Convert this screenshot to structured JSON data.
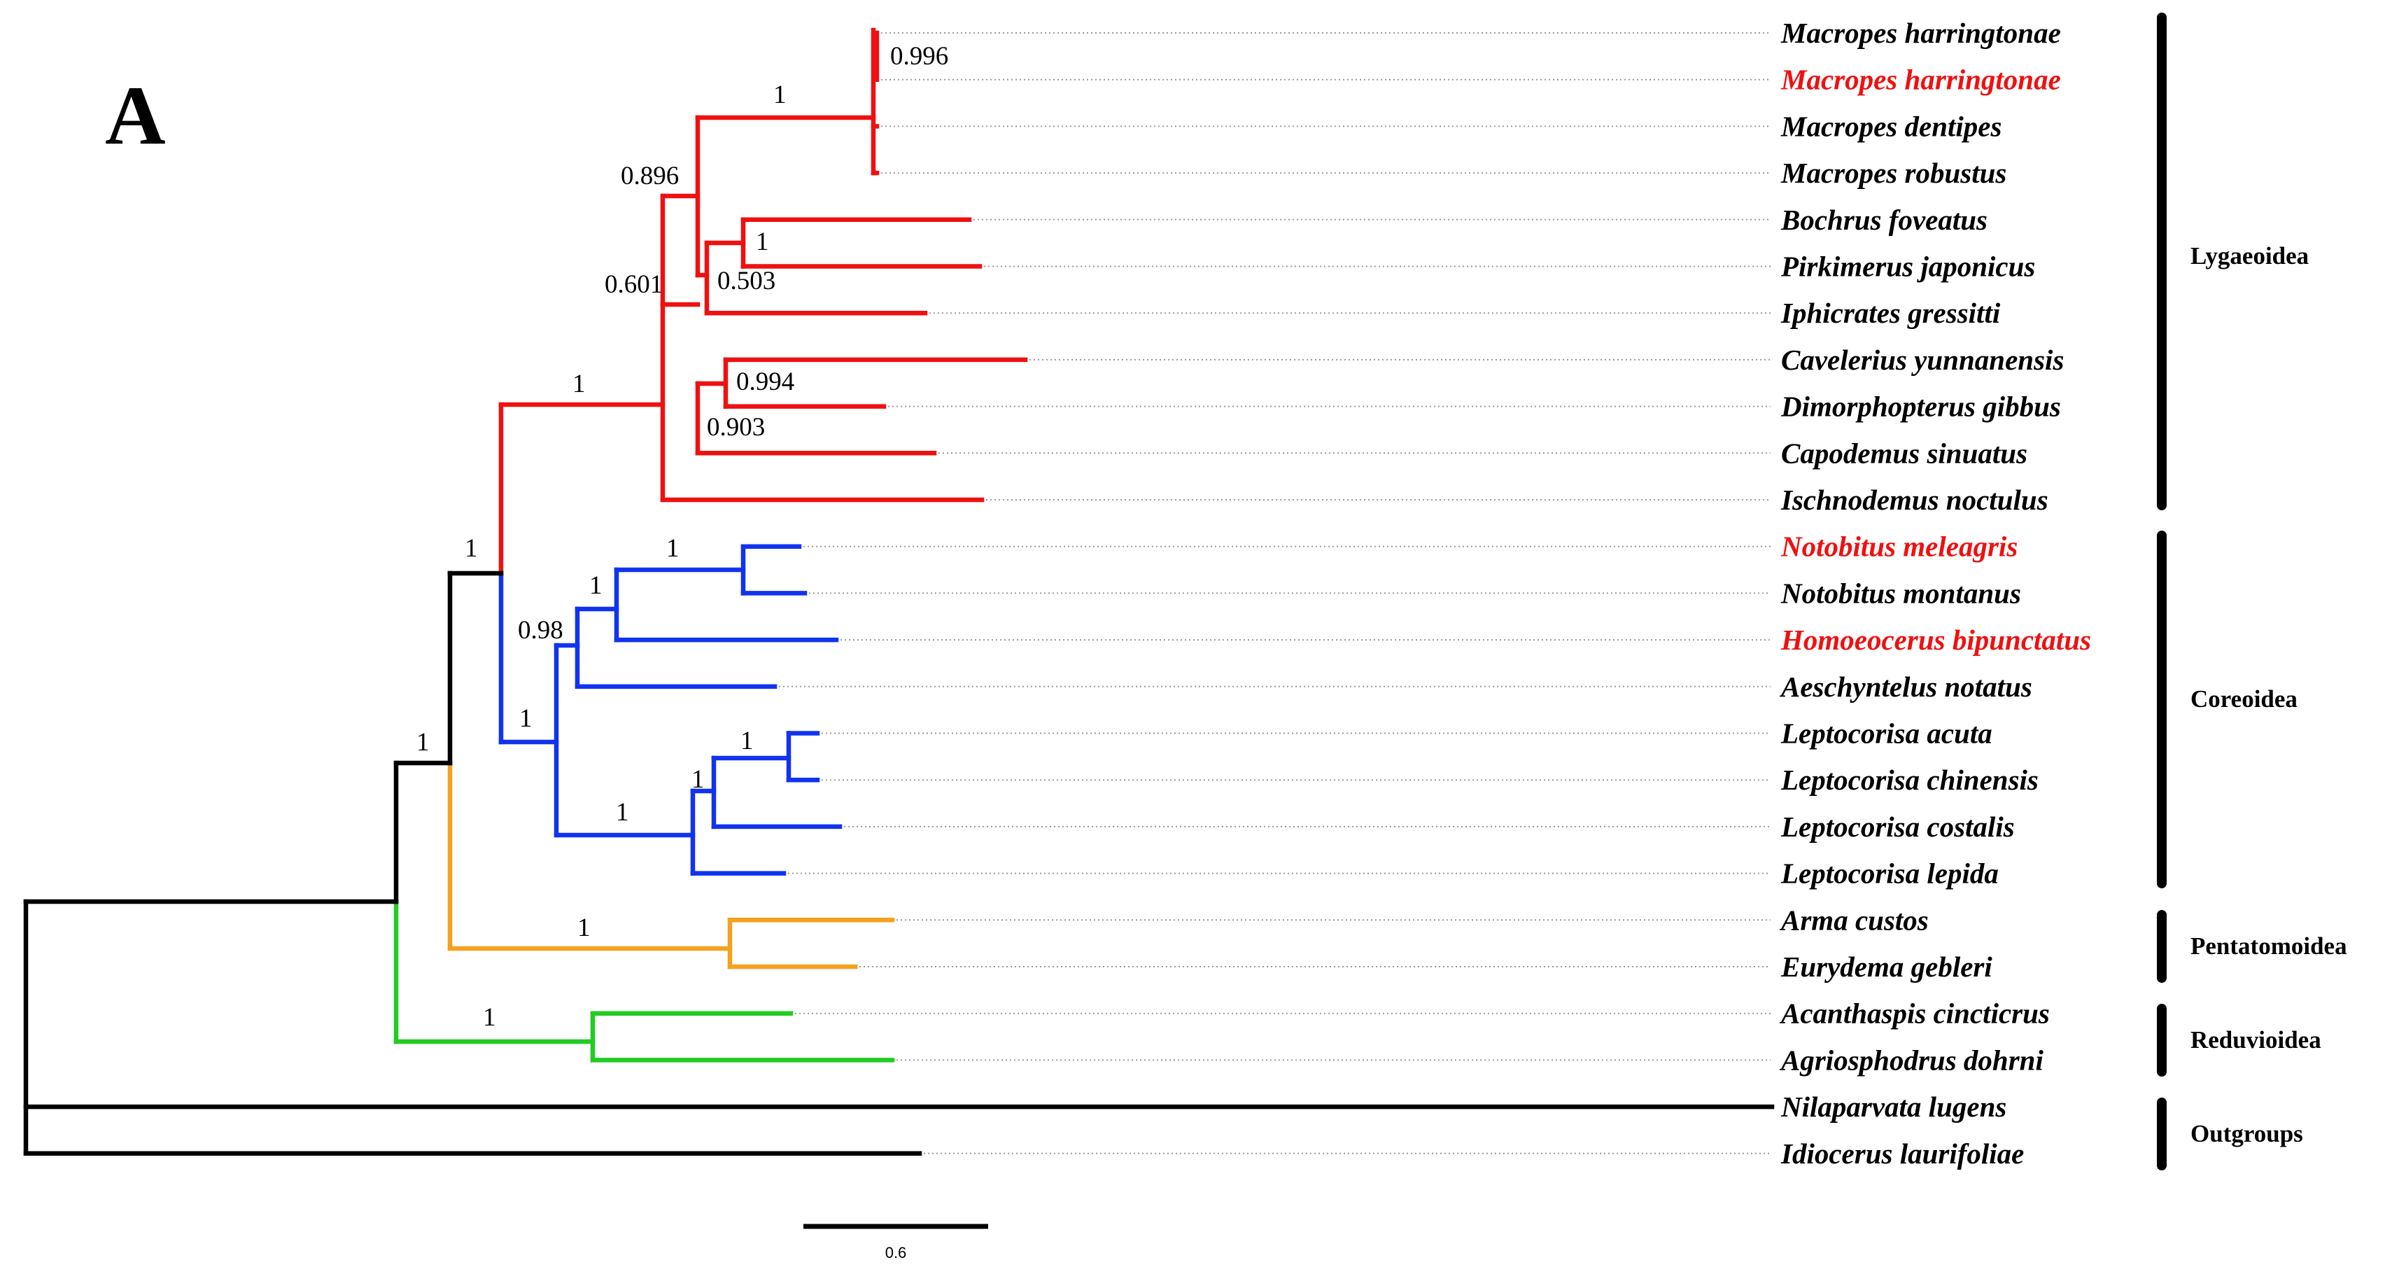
{
  "panel_label": "A",
  "colors": {
    "lygaeoidea": "#ee1111",
    "coreoidea": "#1133ee",
    "pentatomoidea": "#f5a11f",
    "reduvioidea": "#22cc22",
    "backbone": "#000000",
    "highlight_text": "#ee1111",
    "normal_text": "#000000"
  },
  "taxa": [
    {
      "label": "Macropes harringtonae",
      "highlight": false
    },
    {
      "label": "Macropes harringtonae",
      "highlight": true
    },
    {
      "label": "Macropes dentipes",
      "highlight": false
    },
    {
      "label": "Macropes robustus",
      "highlight": false
    },
    {
      "label": "Bochrus foveatus",
      "highlight": false
    },
    {
      "label": "Pirkimerus japonicus",
      "highlight": false
    },
    {
      "label": "Iphicrates gressitti",
      "highlight": false
    },
    {
      "label": "Cavelerius yunnanensis",
      "highlight": false
    },
    {
      "label": "Dimorphopterus gibbus",
      "highlight": false
    },
    {
      "label": "Capodemus sinuatus",
      "highlight": false
    },
    {
      "label": "Ischnodemus noctulus",
      "highlight": false
    },
    {
      "label": "Notobitus meleagris",
      "highlight": true
    },
    {
      "label": "Notobitus montanus",
      "highlight": false
    },
    {
      "label": "Homoeocerus bipunctatus",
      "highlight": true
    },
    {
      "label": "Aeschyntelus notatus",
      "highlight": false
    },
    {
      "label": "Leptocorisa acuta",
      "highlight": false
    },
    {
      "label": "Leptocorisa chinensis",
      "highlight": false
    },
    {
      "label": "Leptocorisa costalis",
      "highlight": false
    },
    {
      "label": "Leptocorisa lepida",
      "highlight": false
    },
    {
      "label": "Arma custos",
      "highlight": false
    },
    {
      "label": "Eurydema gebleri",
      "highlight": false
    },
    {
      "label": "Acanthaspis cincticrus",
      "highlight": false
    },
    {
      "label": "Agriosphodrus dohrni",
      "highlight": false
    },
    {
      "label": "Nilaparvata lugens",
      "highlight": false
    },
    {
      "label": "Idiocerus laurifoliae",
      "highlight": false
    }
  ],
  "support_values": [
    "0.996",
    "1",
    "0.896",
    "1",
    "0.503",
    "0.601",
    "0.994",
    "0.903",
    "1",
    "1",
    "1",
    "1",
    "0.98",
    "1",
    "1",
    "1",
    "1",
    "1",
    "1",
    "1"
  ],
  "groups": [
    {
      "name": "Lygaeoidea"
    },
    {
      "name": "Coreoidea"
    },
    {
      "name": "Pentatomoidea"
    },
    {
      "name": "Reduvioidea"
    },
    {
      "name": "Outgroups"
    }
  ],
  "scale_bar": {
    "label": "0.6",
    "value": 0.6
  }
}
